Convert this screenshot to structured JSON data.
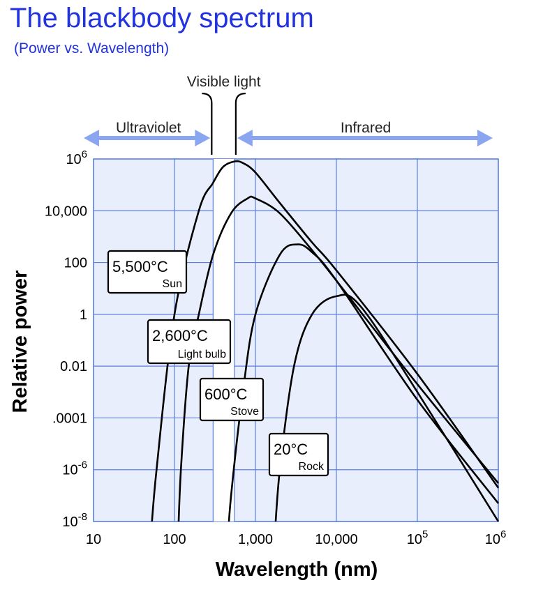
{
  "title": "The blackbody spectrum",
  "subtitle": "(Power vs. Wavelength)",
  "chart_data": {
    "type": "line",
    "xlabel": "Wavelength (nm)",
    "ylabel": "Relative power",
    "x_scale": "log",
    "y_scale": "log",
    "xlim": [
      10,
      1000000
    ],
    "ylim": [
      1e-09,
      1000000
    ],
    "grid": true,
    "x_ticks": [
      {
        "value": 10,
        "label": "10"
      },
      {
        "value": 100,
        "label": "100"
      },
      {
        "value": 1000,
        "label": "1,000"
      },
      {
        "value": 10000,
        "label": "10,000"
      },
      {
        "value": 100000,
        "label": "10",
        "sup": "5"
      },
      {
        "value": 1000000,
        "label": "10",
        "sup": "6"
      }
    ],
    "y_ticks": [
      {
        "value": 1000000,
        "label": "10",
        "sup": "6"
      },
      {
        "value": 10000,
        "label": "10,000"
      },
      {
        "value": 100,
        "label": "100"
      },
      {
        "value": 1,
        "label": "1"
      },
      {
        "value": 0.01,
        "label": "0.01"
      },
      {
        "value": 0.0001,
        "label": ".0001"
      },
      {
        "value": 1e-06,
        "label": "10",
        "sup": "-6"
      },
      {
        "value": 1e-08,
        "label": "10",
        "sup": "-8"
      }
    ],
    "regions": [
      {
        "name": "Ultraviolet",
        "range": [
          10,
          300
        ]
      },
      {
        "name": "Visible light",
        "range": [
          300,
          550
        ]
      },
      {
        "name": "Infrared",
        "range": [
          550,
          1000000
        ]
      }
    ],
    "series": [
      {
        "name": "5,500°C",
        "sub": "Sun",
        "x": [
          50,
          60,
          100,
          200,
          300,
          400,
          550,
          700,
          1000,
          2000,
          5000,
          10000,
          100000,
          1000000
        ],
        "y": [
          1e-09,
          1e-06,
          1,
          10000,
          120000,
          500000,
          800000,
          700000,
          300000,
          20000,
          600,
          50,
          0.005,
          2e-07
        ]
      },
      {
        "name": "2,600°C",
        "sub": "Light bulb",
        "x": [
          110,
          120,
          150,
          200,
          300,
          500,
          800,
          1000,
          2000,
          5000,
          10000,
          100000,
          1000000
        ],
        "y": [
          1e-09,
          1e-06,
          0.01,
          1,
          200,
          8000,
          30000,
          30000,
          8000,
          300,
          20,
          0.002,
          3e-07
        ]
      },
      {
        "name": "600°C",
        "sub": "Stove",
        "x": [
          450,
          500,
          700,
          1000,
          2000,
          3300,
          5000,
          10000,
          100000,
          1000000
        ],
        "y": [
          1e-09,
          1e-07,
          0.001,
          1,
          200,
          500,
          250,
          20,
          0.0005,
          5e-08
        ]
      },
      {
        "name": "20°C",
        "sub": "Rock",
        "x": [
          1700,
          2000,
          3000,
          5000,
          10000,
          20000,
          100000,
          1000000
        ],
        "y": [
          1e-09,
          1e-06,
          0.01,
          1,
          5,
          2,
          0.001,
          1e-08
        ]
      }
    ]
  }
}
